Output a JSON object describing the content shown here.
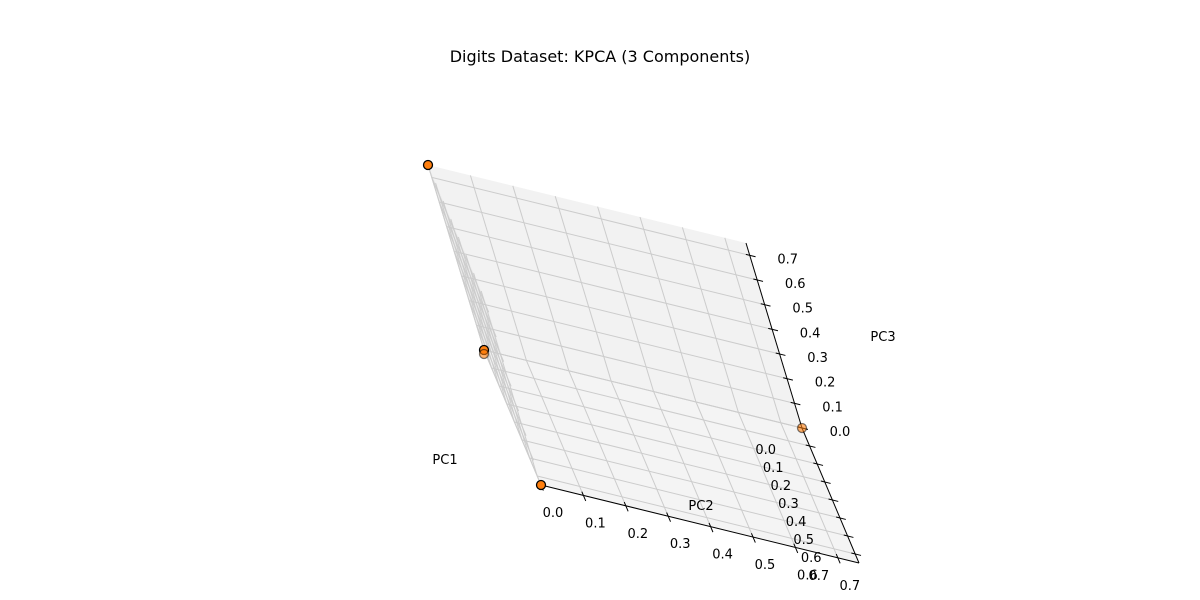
{
  "chart_data": {
    "type": "scatter",
    "projection": "3d",
    "title": "Digits Dataset: KPCA (3 Components)",
    "xlabel": "PC1",
    "ylabel": "PC2",
    "zlabel": "PC3",
    "xlim": [
      0.0,
      0.75
    ],
    "ylim": [
      0.0,
      0.75
    ],
    "zlim": [
      0.0,
      0.75
    ],
    "xticks": [
      "0.0",
      "0.1",
      "0.2",
      "0.3",
      "0.4",
      "0.5",
      "0.6",
      "0.7"
    ],
    "yticks": [
      "0.0",
      "0.1",
      "0.2",
      "0.3",
      "0.4",
      "0.5",
      "0.6",
      "0.7"
    ],
    "zticks": [
      "0.0",
      "0.1",
      "0.2",
      "0.3",
      "0.4",
      "0.5",
      "0.6",
      "0.7"
    ],
    "grid": true,
    "marker_color": "#ff7f0e",
    "marker_edge": "#000000",
    "pane_color": "#f2f2f2",
    "grid_color": "#cccccc",
    "points": [
      {
        "x": 0.0,
        "y": 0.0,
        "z": 0.75,
        "alpha": 1.0
      },
      {
        "x": 0.0,
        "y": 0.0,
        "z": 0.0,
        "alpha": 1.0
      },
      {
        "x": 0.0,
        "y": 0.0,
        "z": 0.0,
        "alpha": 0.6
      },
      {
        "x": 0.75,
        "y": 0.0,
        "z": 0.0,
        "alpha": 1.0
      },
      {
        "x": 0.0,
        "y": 0.75,
        "z": 0.0,
        "alpha": 0.6
      }
    ]
  }
}
